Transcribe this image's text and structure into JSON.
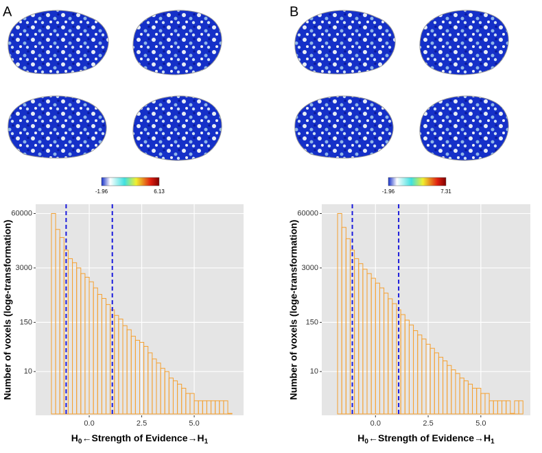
{
  "chart_data": [
    {
      "type": "histogram",
      "panel_label": "A",
      "colorbar_range": [
        -1.96,
        6.13
      ],
      "ylabel": "Number of voxels (loge-transformation)",
      "xlabel": [
        "H",
        "0",
        "←Strength of Evidence→H",
        "1"
      ],
      "bins": [
        -1.8,
        -1.6,
        -1.4,
        -1.2,
        -1,
        -0.8,
        -0.6,
        -0.4,
        -0.2,
        0,
        0.2,
        0.4,
        0.6,
        0.8,
        1,
        1.2,
        1.4,
        1.6,
        1.8,
        2,
        2.2,
        2.4,
        2.6,
        2.8,
        3,
        3.2,
        3.4,
        3.6,
        3.8,
        4,
        4.2,
        4.4,
        4.6,
        4.8,
        5,
        5.2,
        5.4,
        5.6,
        5.8,
        6,
        6.2,
        6.4,
        6.6,
        6.8
      ],
      "values": [
        60000,
        25000,
        16000,
        8000,
        5000,
        4000,
        3000,
        2200,
        1800,
        1400,
        1000,
        700,
        560,
        400,
        300,
        220,
        180,
        125,
        100,
        70,
        56,
        50,
        40,
        28,
        20,
        16,
        12,
        10,
        7,
        6,
        5,
        4,
        3,
        3,
        2,
        2,
        2,
        2,
        2,
        2,
        2,
        2,
        1
      ],
      "color": "#f5a030",
      "log_y": true,
      "grid": true,
      "xlim": [
        -2.55,
        7.35
      ],
      "xticks": [
        {
          "value": 0,
          "label": "0.0"
        },
        {
          "value": 2.5,
          "label": "2.5"
        },
        {
          "value": 5,
          "label": "5.0"
        }
      ],
      "ylim": [
        0.9,
        100000
      ],
      "yticks": [
        10,
        150,
        3000,
        60000
      ],
      "vlines": [
        -1.1,
        1.1
      ],
      "vline_color": "#1a1adc"
    },
    {
      "type": "histogram",
      "panel_label": "B",
      "colorbar_range": [
        -1.96,
        7.31
      ],
      "ylabel": "Number of voxels (loge-transformation)",
      "xlabel": [
        "H",
        "0",
        "←Strength of Evidence→H",
        "1"
      ],
      "bins": [
        -1.8,
        -1.6,
        -1.4,
        -1.2,
        -1,
        -0.8,
        -0.6,
        -0.4,
        -0.2,
        0,
        0.2,
        0.4,
        0.6,
        0.8,
        1,
        1.2,
        1.4,
        1.6,
        1.8,
        2,
        2.2,
        2.4,
        2.6,
        2.8,
        3,
        3.2,
        3.4,
        3.6,
        3.8,
        4,
        4.2,
        4.4,
        4.6,
        4.8,
        5,
        5.2,
        5.4,
        5.6,
        5.8,
        6,
        6.2,
        6.4,
        6.6,
        6.8,
        7
      ],
      "values": [
        60000,
        28000,
        15000,
        8000,
        5000,
        3800,
        2800,
        2200,
        1700,
        1300,
        1000,
        750,
        550,
        420,
        300,
        230,
        170,
        130,
        95,
        75,
        60,
        45,
        36,
        28,
        22,
        18,
        14,
        11,
        9,
        7,
        6,
        5,
        4,
        4,
        3,
        3,
        2,
        2,
        2,
        2,
        2,
        1,
        2,
        2
      ],
      "color": "#f5a030",
      "log_y": true,
      "grid": true,
      "xlim": [
        -2.55,
        7.35
      ],
      "xticks": [
        {
          "value": 0,
          "label": "0.0"
        },
        {
          "value": 2.5,
          "label": "2.5"
        },
        {
          "value": 5,
          "label": "5.0"
        }
      ],
      "ylim": [
        0.9,
        100000
      ],
      "yticks": [
        10,
        150,
        3000,
        60000
      ],
      "vlines": [
        -1.1,
        1.1
      ],
      "vline_color": "#1a1adc"
    }
  ]
}
